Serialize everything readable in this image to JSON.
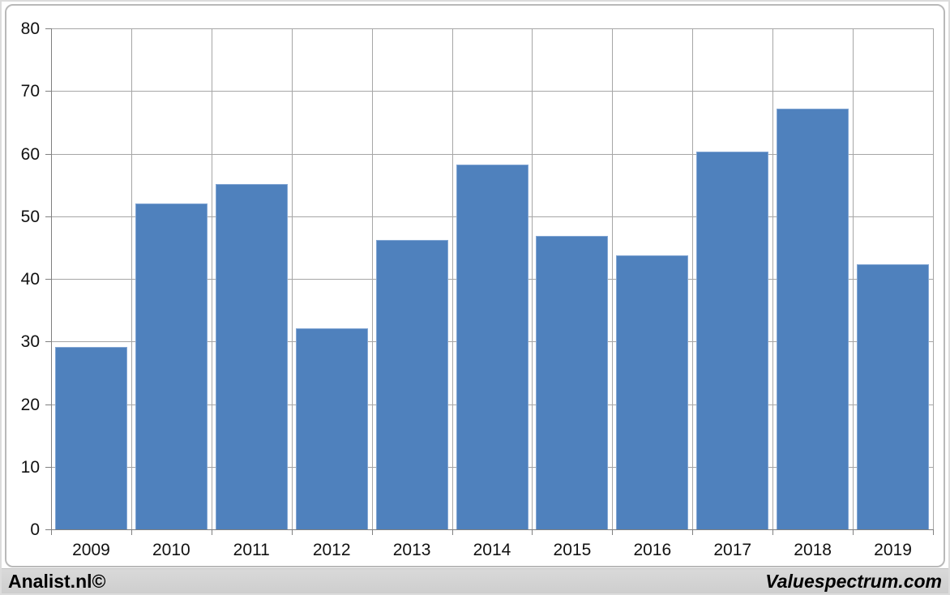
{
  "chart_data": {
    "type": "bar",
    "title": "",
    "xlabel": "",
    "ylabel": "",
    "categories": [
      "2009",
      "2010",
      "2011",
      "2012",
      "2013",
      "2014",
      "2015",
      "2016",
      "2017",
      "2018",
      "2019"
    ],
    "values": [
      29.1,
      52.1,
      55.1,
      32.1,
      46.2,
      58.3,
      46.8,
      43.8,
      60.3,
      67.2,
      42.3
    ],
    "ylim": [
      0,
      80
    ],
    "ytick_step": 10,
    "ytick_labels": [
      "0",
      "10",
      "20",
      "30",
      "40",
      "50",
      "60",
      "70",
      "80"
    ],
    "grid": "both",
    "legend": "none",
    "colors": {
      "bar_fill": "#4F81BD",
      "bar_border": "#84A7D4",
      "gridline": "#a6a6a6",
      "axis": "#808080",
      "label": "#111111"
    }
  },
  "footer": {
    "left": "Analist.nl©",
    "right": "Valuespectrum.com"
  }
}
